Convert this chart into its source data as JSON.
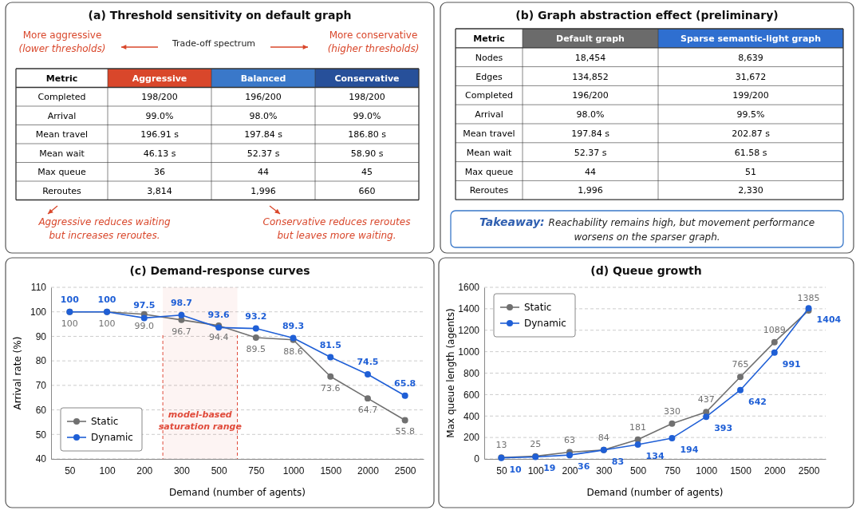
{
  "chart_data": [
    {
      "type": "other",
      "title": "(a) Threshold sensitivity on default graph",
      "ylabel": "Metric",
      "categories": [
        "Aggressive",
        "Balanced",
        "Conservative"
      ],
      "colors": [
        "#d9472b",
        "#3a78c9",
        "#27509a"
      ],
      "y_categories": [
        "Completed",
        "Arrival",
        "Mean travel",
        "Mean wait",
        "Max queue",
        "Reroutes"
      ],
      "cell_labels": [
        [
          "198/200",
          "196/200",
          "198/200"
        ],
        [
          "99.0%",
          "98.0%",
          "99.0%"
        ],
        [
          "196.91 s",
          "197.84 s",
          "186.80 s"
        ],
        [
          "46.13 s",
          "52.37 s",
          "58.90 s"
        ],
        [
          "36",
          "44",
          "45"
        ],
        [
          "3,814",
          "1,996",
          "660"
        ]
      ],
      "annotations": [
        "More aggressive",
        "(lower thresholds)",
        "Trade-off spectrum",
        "More conservative",
        "(higher thresholds)",
        "Aggressive reduces waiting",
        "but increases reroutes.",
        "Conservative reduces reroutes",
        "but leaves more waiting."
      ]
    },
    {
      "type": "other",
      "title": "(b) Graph abstraction effect (preliminary)",
      "ylabel": "Metric",
      "categories": [
        "Default graph",
        "Sparse semantic-light graph"
      ],
      "colors": [
        "#6b6b6b",
        "#2f6fd0"
      ],
      "y_categories": [
        "Nodes",
        "Edges",
        "Completed",
        "Arrival",
        "Mean travel",
        "Mean wait",
        "Max queue",
        "Reroutes"
      ],
      "cell_labels": [
        [
          "18,454",
          "8,639"
        ],
        [
          "134,852",
          "31,672"
        ],
        [
          "196/200",
          "199/200"
        ],
        [
          "98.0%",
          "99.5%"
        ],
        [
          "197.84 s",
          "202.87 s"
        ],
        [
          "52.37 s",
          "61.58 s"
        ],
        [
          "44",
          "51"
        ],
        [
          "1,996",
          "2,330"
        ]
      ],
      "annotations": [
        "Takeaway: Reachability remains high, but movement performance worsens on the sparser graph."
      ]
    },
    {
      "type": "line",
      "title": "(c) Demand-response curves",
      "xlabel": "Demand (number of agents)",
      "ylabel": "Arrival rate (%)",
      "categories": [
        "50",
        "100",
        "200",
        "300",
        "500",
        "750",
        "1000",
        "1500",
        "2000",
        "2500"
      ],
      "series": [
        {
          "name": "Static",
          "color": "#707070",
          "values": [
            100,
            100,
            99.0,
            96.7,
            94.4,
            89.5,
            88.6,
            73.6,
            64.7,
            55.8
          ],
          "value_labels": [
            "100",
            "100",
            "99.0",
            "96.7",
            "94.4",
            "89.5",
            "88.6",
            "73.6",
            "64.7",
            "55.8"
          ]
        },
        {
          "name": "Dynamic",
          "color": "#1f5fd6",
          "values": [
            100,
            100,
            97.5,
            98.7,
            93.6,
            93.2,
            89.3,
            81.5,
            74.5,
            65.8
          ],
          "value_labels": [
            "100",
            "100",
            "97.5",
            "98.7",
            "93.6",
            "93.2",
            "89.3",
            "81.5",
            "74.5",
            "65.8"
          ]
        }
      ],
      "ylim": [
        40,
        110
      ],
      "yticks": [
        40,
        50,
        60,
        70,
        80,
        90,
        100,
        110
      ],
      "grid": "y",
      "legend": "bottom left",
      "marker": "circle",
      "bands": [
        {
          "axis": "x",
          "from": "300",
          "to": "500",
          "label": "model-based saturation range",
          "color": "#e04a3a"
        }
      ]
    },
    {
      "type": "line",
      "title": "(d) Queue growth",
      "xlabel": "Demand (number of agents)",
      "ylabel": "Max queue length (agents)",
      "categories": [
        "50",
        "100",
        "200",
        "300",
        "500",
        "750",
        "1000",
        "1500",
        "2000",
        "2500"
      ],
      "series": [
        {
          "name": "Static",
          "color": "#707070",
          "values": [
            13,
            25,
            63,
            84,
            181,
            330,
            437,
            765,
            1089,
            1385
          ]
        },
        {
          "name": "Dynamic",
          "color": "#1f5fd6",
          "values": [
            10,
            19,
            36,
            83,
            134,
            194,
            393,
            642,
            991,
            1404
          ]
        }
      ],
      "ylim": [
        0,
        1600
      ],
      "yticks": [
        0,
        200,
        400,
        600,
        800,
        1000,
        1200,
        1400,
        1600
      ],
      "grid": "y",
      "legend": "top left",
      "marker": "circle",
      "data_labels": true
    }
  ]
}
